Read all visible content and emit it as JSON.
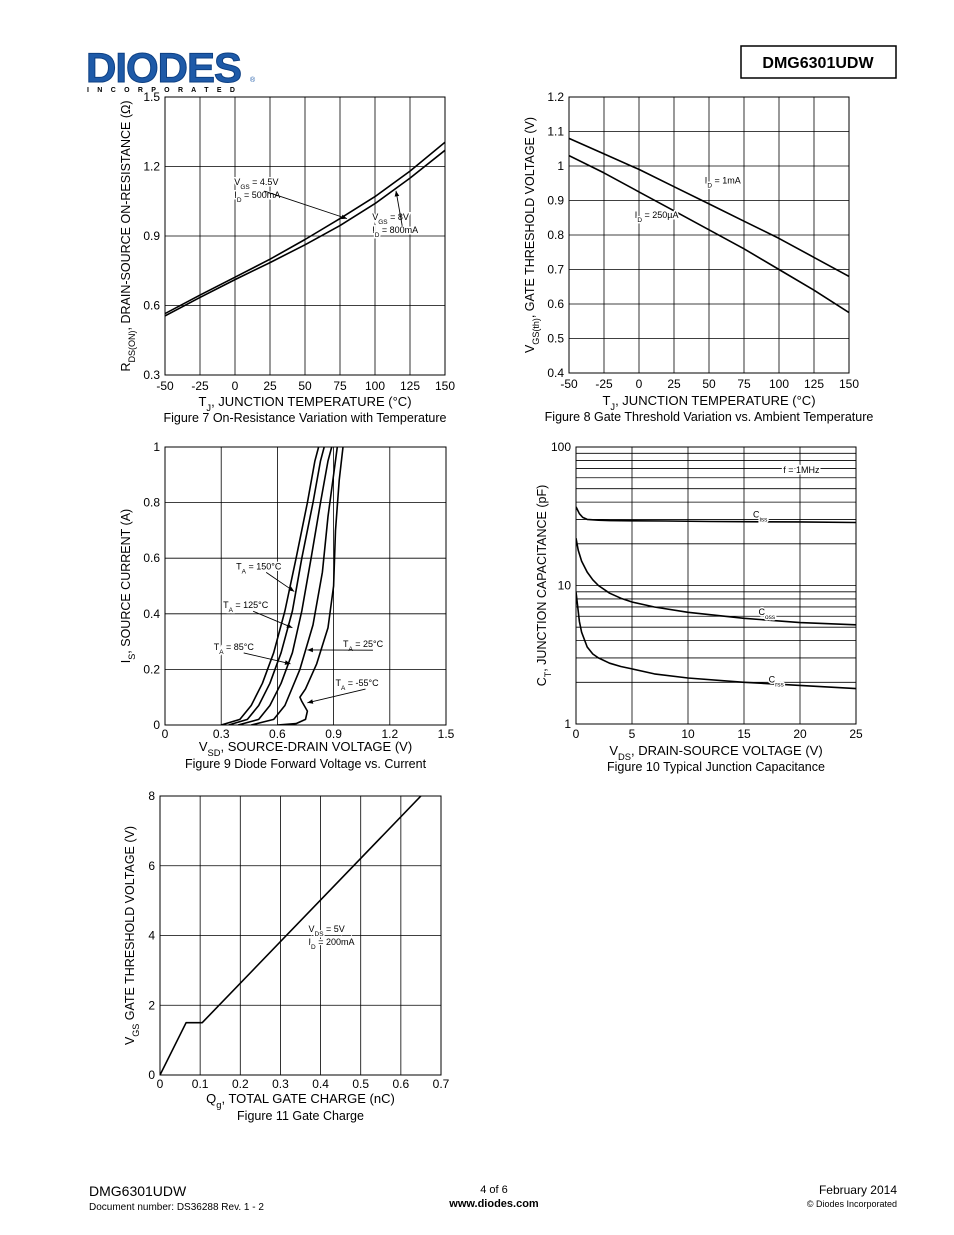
{
  "header": {
    "logo_text": "DIODES",
    "logo_sub": "I N C O R P O R A T E D",
    "registered": "®",
    "part_number": "DMG6301UDW"
  },
  "footer": {
    "part_number": "DMG6301UDW",
    "doc_number": "Document number: DS36288  Rev. 1 - 2",
    "page": "4 of 6",
    "website": "www.diodes.com",
    "date": "February 2014",
    "copyright": "© Diodes Incorporated"
  },
  "colors": {
    "ink": "#000000",
    "logo_blue": "#1e5aa8",
    "background": "#ffffff"
  },
  "chart_data": [
    {
      "id": "fig7",
      "type": "line",
      "caption": "Figure 7 On-Resistance Variation with Temperature",
      "xlabel": {
        "pre": "T",
        "sub": "J",
        "post": ", JUNCTION TEMPERATURE (°C)"
      },
      "ylabel": {
        "pre": "R",
        "sub": "DS(ON)",
        "post": ", DRAIN-SOURCE ON-RESISTANCE (Ω)"
      },
      "xlim": [
        -50,
        150
      ],
      "ylim": [
        0.3,
        1.5
      ],
      "xticks": [
        -50,
        -25,
        0,
        25,
        50,
        75,
        100,
        125,
        150
      ],
      "xtick_labels": [
        "-50",
        "-25",
        "0",
        "25",
        "50",
        "75",
        "100",
        "125",
        "150"
      ],
      "yticks": [
        0.3,
        0.6,
        0.9,
        1.2,
        1.5
      ],
      "ytick_labels": [
        "0.3",
        "0.6",
        "0.9",
        "1.2",
        "1.5"
      ],
      "grid": true,
      "series": [
        {
          "x": [
            -50,
            -25,
            0,
            25,
            50,
            75,
            100,
            125,
            150
          ],
          "y": [
            0.555,
            0.635,
            0.712,
            0.785,
            0.862,
            0.945,
            1.04,
            1.15,
            1.27
          ]
        },
        {
          "x": [
            -50,
            -25,
            0,
            25,
            50,
            75,
            100,
            125,
            150
          ],
          "y": [
            0.565,
            0.645,
            0.722,
            0.8,
            0.885,
            0.975,
            1.07,
            1.18,
            1.305
          ]
        }
      ],
      "annotations": [
        {
          "lines": [
            {
              "pre": "V",
              "sub": "GS",
              "post": " = 4.5V"
            },
            {
              "pre": "I",
              "sub": "D",
              "post": " = 500mA"
            }
          ],
          "at": [
            -0.5,
            1.12
          ],
          "arrow": [
            80,
            0.975
          ]
        },
        {
          "lines": [
            {
              "pre": "V",
              "sub": "GS",
              "post": " = 8V"
            },
            {
              "pre": "I",
              "sub": "D",
              "post": " = 800mA"
            }
          ],
          "at": [
            98,
            0.97
          ],
          "arrow": [
            115,
            1.095
          ]
        }
      ]
    },
    {
      "id": "fig8",
      "type": "line",
      "caption": "Figure 8 Gate Threshold Variation vs. Ambient Temperature",
      "xlabel": {
        "pre": "T",
        "sub": "J",
        "post": ", JUNCTION TEMPERATURE (°C)"
      },
      "ylabel": {
        "pre": "V",
        "sub": "GS(th)",
        "post": ", GATE THRESHOLD VOLTAGE (V)"
      },
      "xlim": [
        -50,
        150
      ],
      "ylim": [
        0.4,
        1.2
      ],
      "xticks": [
        -50,
        -25,
        0,
        25,
        50,
        75,
        100,
        125,
        150
      ],
      "xtick_labels": [
        "-50",
        "-25",
        "0",
        "25",
        "50",
        "75",
        "100",
        "125",
        "150"
      ],
      "yticks": [
        0.4,
        0.5,
        0.6,
        0.7,
        0.8,
        0.9,
        1,
        1.1,
        1.2
      ],
      "ytick_labels": [
        "0.4",
        "0.5",
        "0.6",
        "0.7",
        "0.8",
        "0.9",
        "1",
        "1.1",
        "1.2"
      ],
      "grid": true,
      "series": [
        {
          "x": [
            -50,
            -25,
            0,
            25,
            50,
            75,
            100,
            125,
            150
          ],
          "y": [
            1.08,
            1.035,
            0.99,
            0.94,
            0.89,
            0.84,
            0.79,
            0.735,
            0.68
          ]
        },
        {
          "x": [
            -50,
            -25,
            0,
            25,
            50,
            75,
            100,
            125,
            150
          ],
          "y": [
            1.03,
            0.98,
            0.925,
            0.87,
            0.815,
            0.76,
            0.7,
            0.64,
            0.575
          ]
        }
      ],
      "annotations": [
        {
          "lines": [
            {
              "pre": "I",
              "sub": "D",
              "post": " = 1mA"
            }
          ],
          "at": [
            47,
            0.95
          ]
        },
        {
          "lines": [
            {
              "pre": "I",
              "sub": "D",
              "post": " = 250µA"
            }
          ],
          "at": [
            -3,
            0.85
          ]
        }
      ]
    },
    {
      "id": "fig9",
      "type": "line",
      "caption": "Figure 9 Diode Forward Voltage vs. Current",
      "xlabel": {
        "pre": "V",
        "sub": "SD",
        "post": ", SOURCE-DRAIN VOLTAGE (V)"
      },
      "ylabel": {
        "pre": "I",
        "sub": "S",
        "post": ", SOURCE CURRENT (A)"
      },
      "xlim": [
        0,
        1.5
      ],
      "ylim": [
        0,
        1
      ],
      "xticks": [
        0,
        0.3,
        0.6,
        0.9,
        1.2,
        1.5
      ],
      "xtick_labels": [
        "0",
        "0.3",
        "0.6",
        "0.9",
        "1.2",
        "1.5"
      ],
      "yticks": [
        0,
        0.2,
        0.4,
        0.6,
        0.8,
        1
      ],
      "ytick_labels": [
        "0",
        "0.2",
        "0.4",
        "0.6",
        "0.8",
        "1"
      ],
      "grid": true,
      "series": [
        {
          "x": [
            0.3,
            0.4,
            0.46,
            0.52,
            0.58,
            0.64,
            0.7,
            0.76,
            0.8,
            0.82
          ],
          "y": [
            0,
            0.02,
            0.07,
            0.15,
            0.26,
            0.41,
            0.6,
            0.8,
            0.95,
            1
          ]
        },
        {
          "x": [
            0.34,
            0.44,
            0.5,
            0.56,
            0.62,
            0.68,
            0.73,
            0.79,
            0.83,
            0.85
          ],
          "y": [
            0,
            0.02,
            0.07,
            0.15,
            0.26,
            0.41,
            0.6,
            0.8,
            0.95,
            1
          ]
        },
        {
          "x": [
            0.39,
            0.5,
            0.56,
            0.62,
            0.68,
            0.73,
            0.78,
            0.83,
            0.87,
            0.89
          ],
          "y": [
            0,
            0.02,
            0.07,
            0.15,
            0.26,
            0.41,
            0.6,
            0.8,
            0.95,
            1
          ]
        },
        {
          "x": [
            0.46,
            0.58,
            0.64,
            0.72,
            0.79,
            0.84,
            0.87,
            0.9,
            0.92
          ],
          "y": [
            0,
            0.02,
            0.07,
            0.2,
            0.36,
            0.55,
            0.75,
            0.9,
            1
          ]
        },
        {
          "x": [
            0.6,
            0.7,
            0.75,
            0.76,
            0.73,
            0.72,
            0.75,
            0.81,
            0.87,
            0.9,
            0.91,
            0.93,
            0.95
          ],
          "y": [
            0,
            0.005,
            0.02,
            0.05,
            0.085,
            0.1,
            0.13,
            0.22,
            0.35,
            0.5,
            0.7,
            0.88,
            1
          ]
        }
      ],
      "annotations": [
        {
          "lines": [
            {
              "pre": "T",
              "sub": "A",
              "post": " = 150°C"
            }
          ],
          "at": [
            0.38,
            0.56
          ],
          "arrow": [
            0.69,
            0.48
          ]
        },
        {
          "lines": [
            {
              "pre": "T",
              "sub": "A",
              "post": " = 125°C"
            }
          ],
          "at": [
            0.31,
            0.42
          ],
          "arrow": [
            0.68,
            0.35
          ]
        },
        {
          "lines": [
            {
              "pre": "T",
              "sub": "A",
              "post": " = 85°C"
            }
          ],
          "at": [
            0.26,
            0.27
          ],
          "arrow": [
            0.67,
            0.22
          ]
        },
        {
          "lines": [
            {
              "pre": "T",
              "sub": "A",
              "post": " = 25°C"
            }
          ],
          "at": [
            0.95,
            0.28
          ],
          "arrow": [
            0.76,
            0.27
          ]
        },
        {
          "lines": [
            {
              "pre": "T",
              "sub": "A",
              "post": " = -55°C"
            }
          ],
          "at": [
            0.91,
            0.14
          ],
          "arrow": [
            0.76,
            0.08
          ]
        }
      ]
    },
    {
      "id": "fig10",
      "type": "line",
      "caption": "Figure 10 Typical Junction Capacitance",
      "xlabel": {
        "pre": "V",
        "sub": "DS",
        "post": ", DRAIN-SOURCE VOLTAGE (V)"
      },
      "ylabel": {
        "pre": "C",
        "sub": "T",
        "post": ", JUNCTION CAPACITANCE (pF)"
      },
      "xlim": [
        0,
        25
      ],
      "ylim": [
        1,
        100
      ],
      "yscale": "log",
      "xticks": [
        0,
        5,
        10,
        15,
        20,
        25
      ],
      "xtick_labels": [
        "0",
        "5",
        "10",
        "15",
        "20",
        "25"
      ],
      "yticks": [
        1,
        10,
        100
      ],
      "ytick_labels": [
        "1",
        "10",
        "100"
      ],
      "grid": true,
      "series": [
        {
          "name": "Ciss",
          "x": [
            0,
            0.3,
            0.6,
            1,
            2,
            3,
            5,
            8,
            12,
            15,
            20,
            25
          ],
          "y": [
            37,
            33,
            31,
            30,
            29.6,
            29.4,
            29.3,
            29.2,
            29.0,
            28.9,
            28.8,
            28.5
          ]
        },
        {
          "name": "Coss",
          "x": [
            0,
            0.2,
            0.5,
            1,
            1.5,
            2,
            3,
            4,
            5,
            7,
            10,
            15,
            20,
            25
          ],
          "y": [
            22,
            18,
            15,
            12.5,
            11,
            10,
            8.8,
            8.1,
            7.6,
            7.0,
            6.4,
            5.8,
            5.4,
            5.2
          ]
        },
        {
          "name": "Crss",
          "x": [
            0,
            0.3,
            0.5,
            1,
            1.5,
            2,
            3,
            4,
            5,
            7,
            10,
            15,
            20,
            25
          ],
          "y": [
            9,
            5.5,
            4.6,
            3.6,
            3.2,
            3.0,
            2.75,
            2.6,
            2.5,
            2.3,
            2.15,
            2.0,
            1.9,
            1.8
          ]
        }
      ],
      "annotations": [
        {
          "lines": [
            {
              "pre": "f = 1MHz",
              "sub": "",
              "post": ""
            }
          ],
          "at": [
            18.5,
            65
          ]
        },
        {
          "lines": [
            {
              "pre": "C",
              "sub": "iss",
              "post": ""
            }
          ],
          "at": [
            15.8,
            31
          ]
        },
        {
          "lines": [
            {
              "pre": "C",
              "sub": "oss",
              "post": ""
            }
          ],
          "at": [
            16.3,
            6.1
          ]
        },
        {
          "lines": [
            {
              "pre": "C",
              "sub": "rss",
              "post": ""
            }
          ],
          "at": [
            17.2,
            2.0
          ]
        }
      ]
    },
    {
      "id": "fig11",
      "type": "line",
      "caption": "Figure 11 Gate Charge",
      "xlabel": {
        "pre": "Q",
        "sub": "g",
        "post": ", TOTAL GATE CHARGE (nC)"
      },
      "ylabel": {
        "pre": "V",
        "sub": "GS",
        "post": " GATE THRESHOLD VOLTAGE (V)"
      },
      "xlim": [
        0,
        0.7
      ],
      "ylim": [
        0,
        8
      ],
      "xticks": [
        0,
        0.1,
        0.2,
        0.3,
        0.4,
        0.5,
        0.6,
        0.7
      ],
      "xtick_labels": [
        "0",
        "0.1",
        "0.2",
        "0.3",
        "0.4",
        "0.5",
        "0.6",
        "0.7"
      ],
      "yticks": [
        0,
        2,
        4,
        6,
        8
      ],
      "ytick_labels": [
        "0",
        "2",
        "4",
        "6",
        "8"
      ],
      "grid": true,
      "series": [
        {
          "x": [
            0,
            0.065,
            0.105,
            0.65
          ],
          "y": [
            0,
            1.5,
            1.5,
            8
          ]
        }
      ],
      "annotations": [
        {
          "lines": [
            {
              "pre": "V",
              "sub": "DS",
              "post": " = 5V"
            },
            {
              "pre": "I",
              "sub": "D",
              "post": " = 200mA"
            }
          ],
          "at": [
            0.37,
            4.1
          ]
        }
      ]
    }
  ]
}
